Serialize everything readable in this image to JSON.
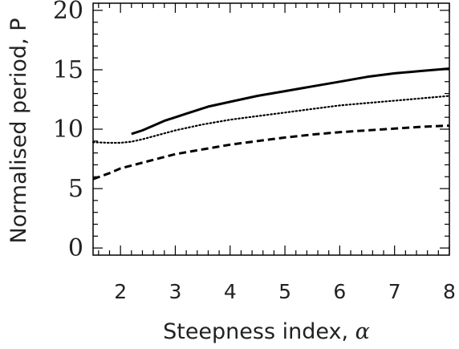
{
  "chart_data": {
    "type": "line",
    "xlabel": "Steepness index, ",
    "xlabel_symbol": "α",
    "ylabel": "Normalised period, P",
    "xlim": [
      1.5,
      8.0
    ],
    "ylim": [
      -0.6,
      20.6
    ],
    "xticks": [
      "2",
      "3",
      "4",
      "5",
      "6",
      "7",
      "8"
    ],
    "yticks": [
      "0",
      "5",
      "10",
      "15",
      "20"
    ],
    "grid": false,
    "legend": "none",
    "series": [
      {
        "style": "solid",
        "color": "#000000",
        "x": [
          2.2,
          2.4,
          2.6,
          2.8,
          3.0,
          3.2,
          3.4,
          3.6,
          3.8,
          4.0,
          4.5,
          5.0,
          5.5,
          6.0,
          6.5,
          7.0,
          7.5,
          8.0
        ],
        "y": [
          9.6,
          9.9,
          10.3,
          10.7,
          11.0,
          11.3,
          11.6,
          11.9,
          12.1,
          12.3,
          12.8,
          13.2,
          13.6,
          14.0,
          14.4,
          14.7,
          14.9,
          15.1
        ]
      },
      {
        "style": "dotted",
        "color": "#000000",
        "x": [
          1.5,
          1.8,
          2.0,
          2.2,
          2.4,
          2.6,
          2.8,
          3.0,
          3.5,
          4.0,
          4.5,
          5.0,
          5.5,
          6.0,
          6.5,
          7.0,
          7.5,
          8.0
        ],
        "y": [
          8.9,
          8.85,
          8.85,
          8.95,
          9.15,
          9.4,
          9.65,
          9.9,
          10.4,
          10.8,
          11.1,
          11.4,
          11.7,
          12.0,
          12.2,
          12.4,
          12.6,
          12.8
        ]
      },
      {
        "style": "dashed",
        "color": "#000000",
        "x": [
          1.5,
          1.8,
          2.0,
          2.5,
          3.0,
          3.5,
          4.0,
          4.5,
          5.0,
          5.5,
          6.0,
          6.5,
          7.0,
          7.5,
          8.0
        ],
        "y": [
          5.8,
          6.3,
          6.7,
          7.3,
          7.9,
          8.3,
          8.7,
          9.0,
          9.3,
          9.55,
          9.75,
          9.9,
          10.05,
          10.2,
          10.3
        ]
      }
    ]
  }
}
